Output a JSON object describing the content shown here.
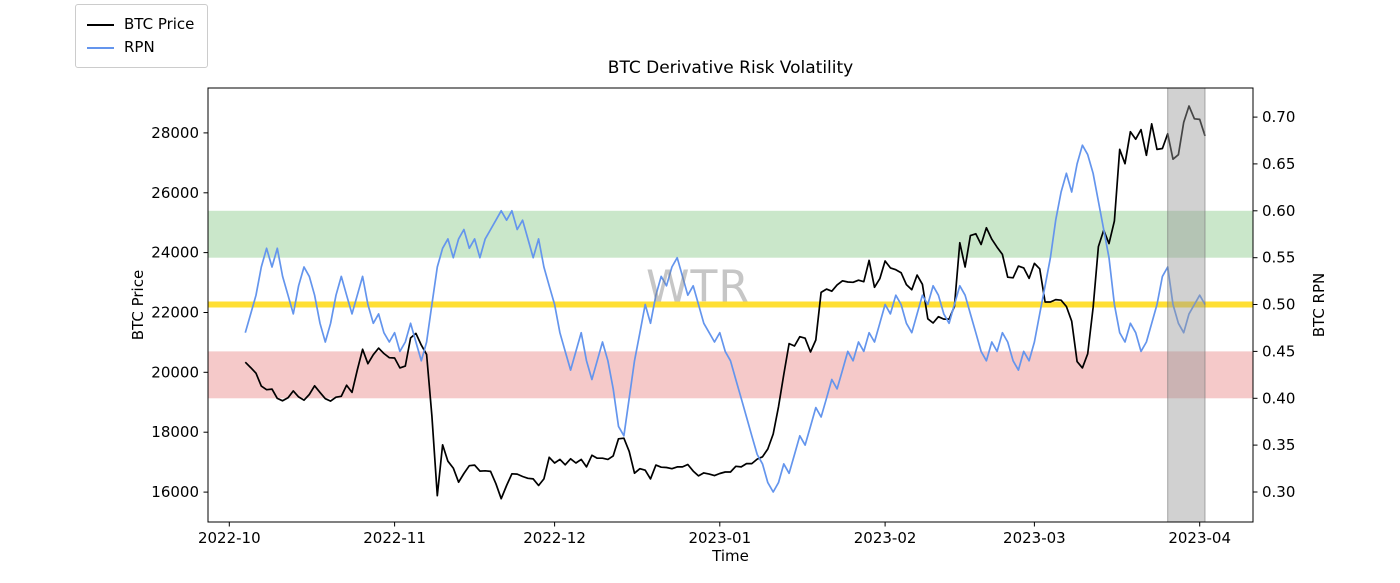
{
  "figure": {
    "title": "BTC Derivative Risk Volatility",
    "xlabel": "Time",
    "ylabel_left": "BTC Price",
    "ylabel_right": "BTC RPN",
    "watermark": "WTR"
  },
  "legend": {
    "position": "upper-left-outside",
    "items": [
      {
        "label": "BTC Price",
        "color": "#000000"
      },
      {
        "label": "RPN",
        "color": "#6495ed"
      }
    ]
  },
  "chart_data": {
    "type": "line",
    "title": "BTC Derivative Risk Volatility",
    "xlabel": "Time",
    "ylabel_left": "BTC Price",
    "ylabel_right": "BTC RPN",
    "grid": false,
    "legend_position": "upper-left-outside",
    "x_axis": {
      "lim": [
        "2022-09-27",
        "2023-04-11"
      ],
      "ticks": [
        {
          "date": "2022-10-01",
          "label": "2022-10"
        },
        {
          "date": "2022-11-01",
          "label": "2022-11"
        },
        {
          "date": "2022-12-01",
          "label": "2022-12"
        },
        {
          "date": "2023-01-01",
          "label": "2023-01"
        },
        {
          "date": "2023-02-01",
          "label": "2023-02"
        },
        {
          "date": "2023-03-01",
          "label": "2023-03"
        },
        {
          "date": "2023-04-01",
          "label": "2023-04"
        }
      ]
    },
    "y_left": {
      "lim": [
        15000,
        29500
      ],
      "ticks": [
        16000,
        18000,
        20000,
        22000,
        24000,
        26000,
        28000
      ]
    },
    "y_right": {
      "lim": [
        0.268,
        0.731
      ],
      "ticks": [
        0.3,
        0.35,
        0.4,
        0.45,
        0.5,
        0.55,
        0.6,
        0.65,
        0.7
      ]
    },
    "hspans": [
      {
        "name": "green-risk-zone",
        "axis": "right",
        "from": 0.55,
        "to": 0.6,
        "color": "#2ca02c",
        "alpha": 0.25
      },
      {
        "name": "red-risk-zone",
        "axis": "right",
        "from": 0.4,
        "to": 0.45,
        "color": "#d62728",
        "alpha": 0.25
      }
    ],
    "hlines": [
      {
        "name": "yellow-midline",
        "axis": "right",
        "value": 0.5,
        "color": "#ffd700",
        "alpha": 0.8,
        "width": 6
      }
    ],
    "vspans": [
      {
        "name": "gray-highlight-window",
        "from": "2023-03-26",
        "to": "2023-04-02",
        "color": "#999999",
        "alpha": 0.45,
        "edge": "#777777"
      }
    ],
    "dates": {
      "start": "2022-10-04",
      "freq": "daily"
    },
    "series": [
      {
        "name": "BTC Price",
        "axis": "left",
        "color": "#000000",
        "width": 1.7,
        "values": [
          20340,
          20160,
          19970,
          19540,
          19420,
          19440,
          19130,
          19050,
          19150,
          19380,
          19180,
          19070,
          19260,
          19550,
          19330,
          19120,
          19040,
          19170,
          19200,
          19570,
          19330,
          20080,
          20770,
          20290,
          20590,
          20810,
          20630,
          20490,
          20480,
          20150,
          20210,
          21150,
          21300,
          20910,
          20600,
          18540,
          15880,
          17580,
          17030,
          16800,
          16330,
          16620,
          16880,
          16900,
          16700,
          16710,
          16690,
          16280,
          15780,
          16220,
          16610,
          16600,
          16520,
          16460,
          16440,
          16220,
          16440,
          17160,
          16970,
          17090,
          16910,
          17110,
          16970,
          17090,
          16840,
          17230,
          17130,
          17130,
          17090,
          17210,
          17780,
          17800,
          17360,
          16630,
          16780,
          16730,
          16440,
          16900,
          16830,
          16820,
          16780,
          16840,
          16840,
          16920,
          16700,
          16540,
          16640,
          16600,
          16550,
          16620,
          16670,
          16670,
          16860,
          16840,
          16950,
          16950,
          17100,
          17180,
          17440,
          17940,
          18850,
          19930,
          20960,
          20880,
          21190,
          21140,
          20680,
          21080,
          22670,
          22780,
          22710,
          22920,
          23060,
          23020,
          23010,
          23080,
          23030,
          23740,
          22840,
          23130,
          23720,
          23490,
          23430,
          23330,
          22930,
          22760,
          23250,
          22940,
          21790,
          21650,
          21860,
          21780,
          21780,
          22200,
          24330,
          23520,
          24570,
          24630,
          24270,
          24830,
          24450,
          24180,
          23940,
          23180,
          23160,
          23550,
          23490,
          23140,
          23640,
          23460,
          22350,
          22350,
          22430,
          22410,
          22200,
          21710,
          20360,
          20150,
          20620,
          22160,
          24200,
          24750,
          24300,
          25060,
          27450,
          26970,
          28040,
          27790,
          28110,
          27250,
          28300,
          27450,
          27480,
          27970,
          27120,
          27270,
          28350,
          28900,
          28470,
          28450,
          27900
        ]
      },
      {
        "name": "RPN",
        "axis": "right",
        "color": "#6495ed",
        "width": 1.7,
        "values": [
          0.47,
          0.49,
          0.51,
          0.54,
          0.56,
          0.54,
          0.56,
          0.53,
          0.51,
          0.49,
          0.52,
          0.54,
          0.53,
          0.51,
          0.48,
          0.46,
          0.48,
          0.51,
          0.53,
          0.51,
          0.49,
          0.51,
          0.53,
          0.5,
          0.48,
          0.49,
          0.47,
          0.46,
          0.47,
          0.45,
          0.46,
          0.48,
          0.46,
          0.44,
          0.46,
          0.5,
          0.54,
          0.56,
          0.57,
          0.55,
          0.57,
          0.58,
          0.56,
          0.57,
          0.55,
          0.57,
          0.58,
          0.59,
          0.6,
          0.59,
          0.6,
          0.58,
          0.59,
          0.57,
          0.55,
          0.57,
          0.54,
          0.52,
          0.5,
          0.47,
          0.45,
          0.43,
          0.45,
          0.47,
          0.44,
          0.42,
          0.44,
          0.46,
          0.44,
          0.41,
          0.37,
          0.36,
          0.4,
          0.44,
          0.47,
          0.5,
          0.48,
          0.51,
          0.53,
          0.52,
          0.54,
          0.55,
          0.53,
          0.51,
          0.52,
          0.5,
          0.48,
          0.47,
          0.46,
          0.47,
          0.45,
          0.44,
          0.42,
          0.4,
          0.38,
          0.36,
          0.34,
          0.33,
          0.31,
          0.3,
          0.31,
          0.33,
          0.32,
          0.34,
          0.36,
          0.35,
          0.37,
          0.39,
          0.38,
          0.4,
          0.42,
          0.41,
          0.43,
          0.45,
          0.44,
          0.46,
          0.45,
          0.47,
          0.46,
          0.48,
          0.5,
          0.49,
          0.51,
          0.5,
          0.48,
          0.47,
          0.49,
          0.51,
          0.5,
          0.52,
          0.51,
          0.49,
          0.48,
          0.5,
          0.52,
          0.51,
          0.49,
          0.47,
          0.45,
          0.44,
          0.46,
          0.45,
          0.47,
          0.46,
          0.44,
          0.43,
          0.45,
          0.44,
          0.46,
          0.49,
          0.52,
          0.55,
          0.59,
          0.62,
          0.64,
          0.62,
          0.65,
          0.67,
          0.66,
          0.64,
          0.61,
          0.58,
          0.55,
          0.5,
          0.47,
          0.46,
          0.48,
          0.47,
          0.45,
          0.46,
          0.48,
          0.5,
          0.53,
          0.54,
          0.5,
          0.48,
          0.47,
          0.49,
          0.5,
          0.51,
          0.5
        ]
      }
    ]
  }
}
